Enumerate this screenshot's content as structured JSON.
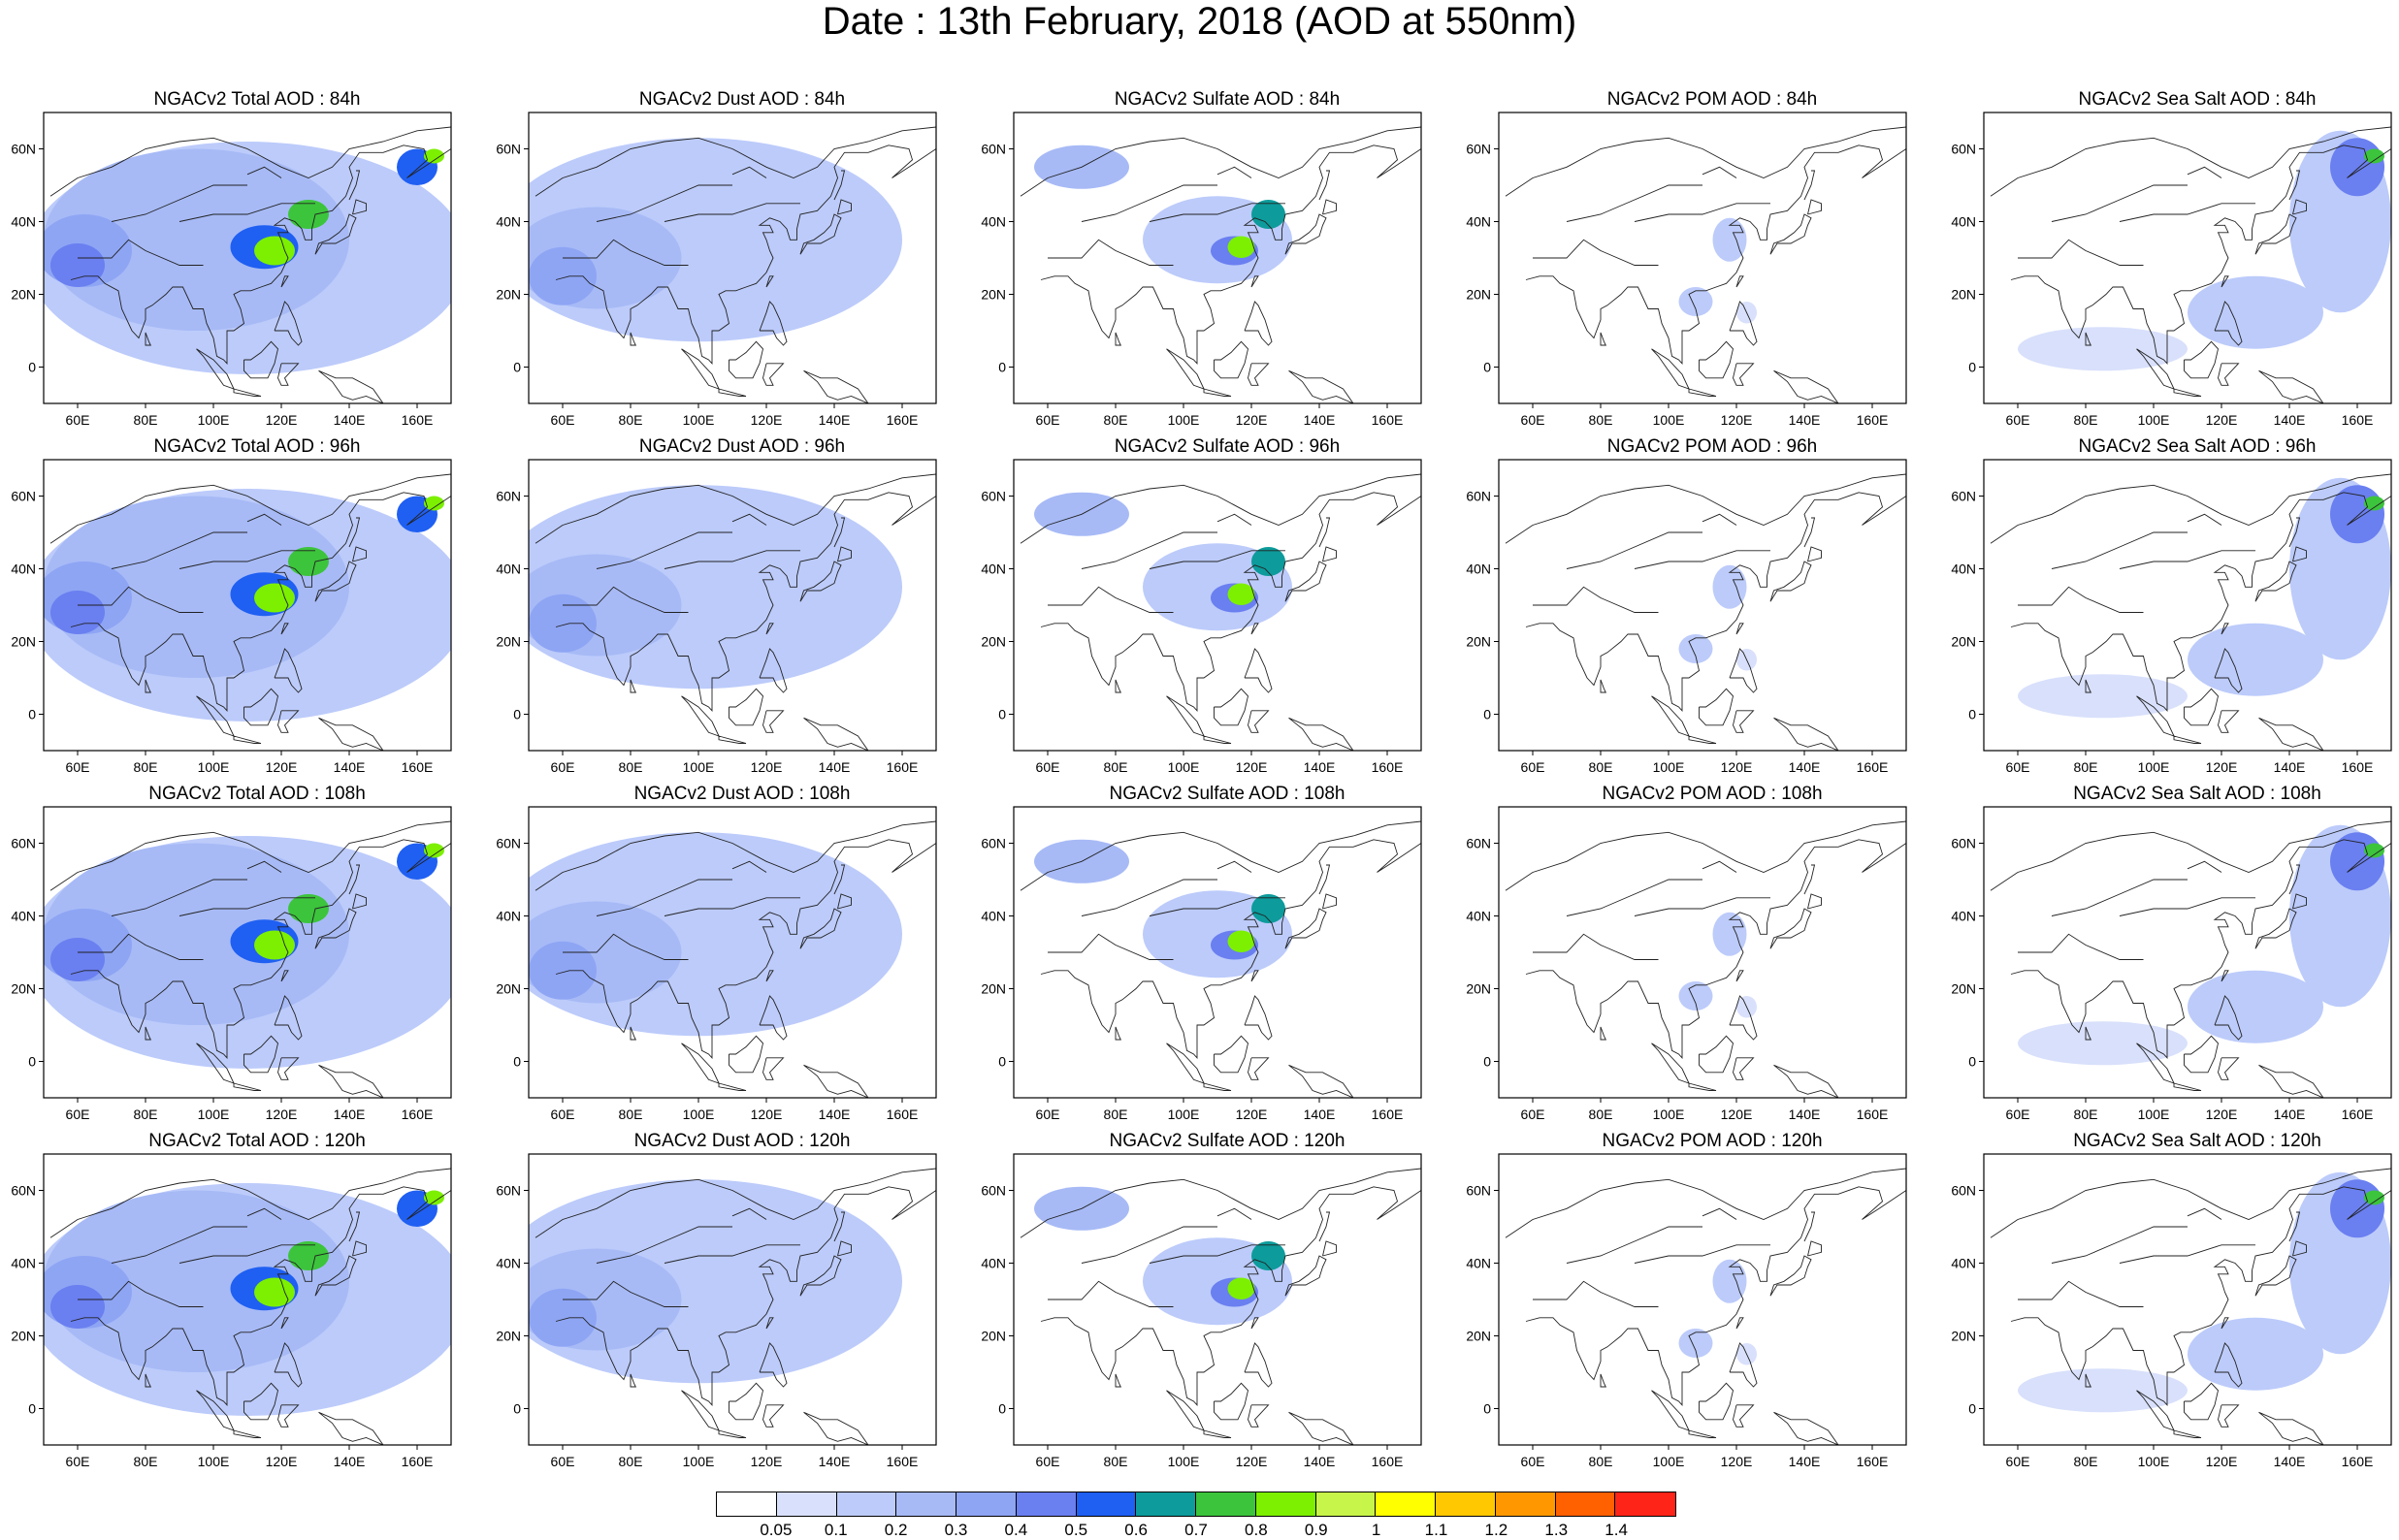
{
  "title": "Date : 13th February, 2018 (AOD at 550nm)",
  "lon_ticks": [
    "60E",
    "80E",
    "100E",
    "120E",
    "140E",
    "160E"
  ],
  "lat_ticks": [
    "60N",
    "40N",
    "20N",
    "0"
  ],
  "map_extent": {
    "lon_min": 50,
    "lon_max": 170,
    "lat_min": -10,
    "lat_max": 70
  },
  "panels": [
    [
      {
        "title": "NGACv2 Total AOD : 84h"
      },
      {
        "title": "NGACv2 Dust AOD : 84h"
      },
      {
        "title": "NGACv2 Sulfate AOD : 84h"
      },
      {
        "title": "NGACv2 POM AOD : 84h"
      },
      {
        "title": "NGACv2 Sea Salt AOD : 84h"
      }
    ],
    [
      {
        "title": "NGACv2 Total AOD : 96h"
      },
      {
        "title": "NGACv2 Dust AOD : 96h"
      },
      {
        "title": "NGACv2 Sulfate AOD : 96h"
      },
      {
        "title": "NGACv2 POM AOD : 96h"
      },
      {
        "title": "NGACv2 Sea Salt AOD : 96h"
      }
    ],
    [
      {
        "title": "NGACv2 Total AOD : 108h"
      },
      {
        "title": "NGACv2 Dust AOD : 108h"
      },
      {
        "title": "NGACv2 Sulfate AOD : 108h"
      },
      {
        "title": "NGACv2 POM AOD : 108h"
      },
      {
        "title": "NGACv2 Sea Salt AOD : 108h"
      }
    ],
    [
      {
        "title": "NGACv2 Total AOD : 120h"
      },
      {
        "title": "NGACv2 Dust AOD : 120h"
      },
      {
        "title": "NGACv2 Sulfate AOD : 120h"
      },
      {
        "title": "NGACv2 POM AOD : 120h"
      },
      {
        "title": "NGACv2 Sea Salt  AOD : 120h"
      }
    ]
  ],
  "colorbar": {
    "labels": [
      "0.05",
      "0.1",
      "0.2",
      "0.3",
      "0.4",
      "0.5",
      "0.6",
      "0.7",
      "0.8",
      "0.9",
      "1",
      "1.1",
      "1.2",
      "1.3",
      "1.4"
    ],
    "colors": [
      "#ffffff",
      "#d8e0fb",
      "#bccbfa",
      "#a7baf6",
      "#8ea5f4",
      "#6a7ff0",
      "#1f5ff2",
      "#0d9b9b",
      "#3cc43c",
      "#7cf000",
      "#c8f54a",
      "#ffff00",
      "#ffc800",
      "#ff9800",
      "#ff6000",
      "#ff2418"
    ]
  }
}
